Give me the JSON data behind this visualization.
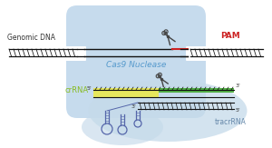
{
  "bg_color": "#ffffff",
  "cas9_blob_color": "#bed6eb",
  "tracr_blob_color": "#c5daea",
  "text_genomic_dna": "Genomic DNA",
  "text_cas9": "Cas9 Nuclease",
  "text_pam": "PAM",
  "text_crrna": "crRNA",
  "text_tracrrna": "tracrRNA",
  "pam_color": "#cc2222",
  "crrna_color": "#88bb22",
  "tracrrna_color": "#6688aa",
  "dna_color": "#111111",
  "guide_yellow_color": "#e8e855",
  "guide_green_color": "#44aa33",
  "scissor_color": "#444444",
  "stem_loop_color": "#5566aa",
  "cas9_text_color": "#5599cc"
}
